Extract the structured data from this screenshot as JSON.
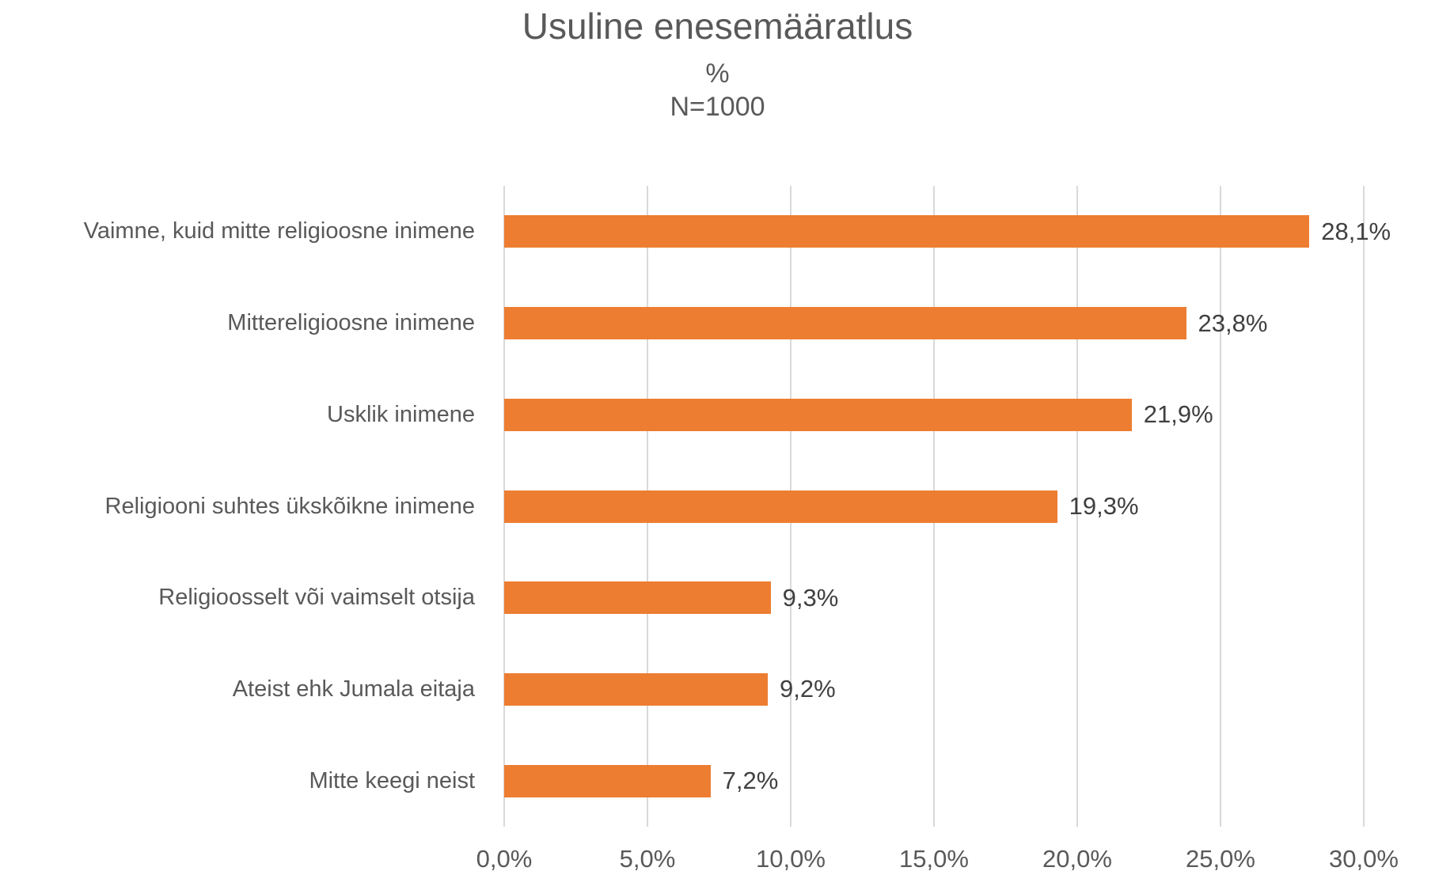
{
  "chart": {
    "title": "Usuline enesemääratlus",
    "subtitle_percent": "%",
    "subtitle_n": "N=1000"
  },
  "chart_data": {
    "type": "bar",
    "orientation": "horizontal",
    "title": "Usuline enesemääratlus",
    "subtitle": [
      "%",
      "N=1000"
    ],
    "categories": [
      "Vaimne, kuid mitte religioosne inimene",
      "Mittereligioosne inimene",
      "Usklik inimene",
      "Religiooni suhtes ükskõikne inimene",
      "Religioosselt või vaimselt otsija",
      "Ateist ehk Jumala eitaja",
      "Mitte keegi neist"
    ],
    "values": [
      28.1,
      23.8,
      21.9,
      19.3,
      9.3,
      9.2,
      7.2
    ],
    "value_labels": [
      "28,1%",
      "23,8%",
      "21,9%",
      "19,3%",
      "9,3%",
      "9,2%",
      "7,2%"
    ],
    "xlim": [
      0,
      30
    ],
    "x_tick_labels": [
      "0,0%",
      "5,0%",
      "10,0%",
      "15,0%",
      "20,0%",
      "25,0%",
      "30,0%"
    ],
    "grid": true,
    "legend_position": "none",
    "bar_color": "#ED7D31",
    "gridline_color": "#D9D9D9",
    "axis_label_color": "#595959",
    "value_label_color": "#404040"
  }
}
